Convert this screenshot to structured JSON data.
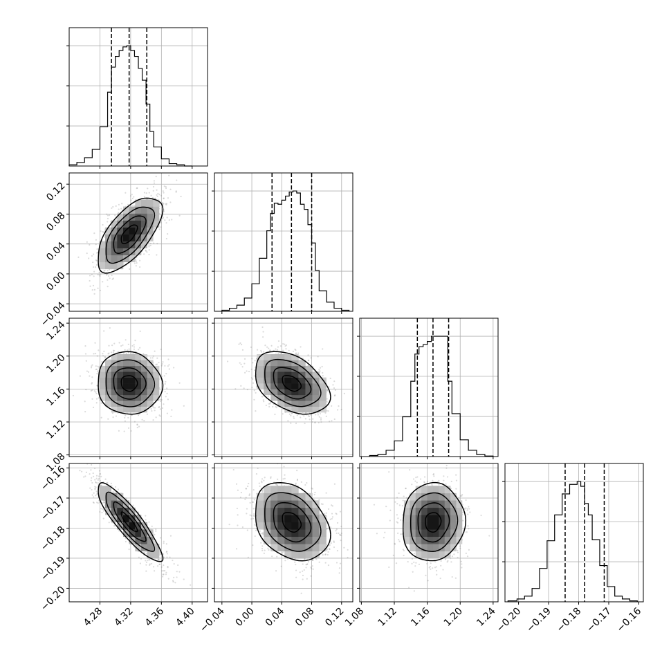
{
  "chart_data": {
    "type": "corner",
    "grid": true,
    "parameters": [
      {
        "lim": [
          4.24,
          4.42
        ],
        "ticks": [
          4.28,
          4.32,
          4.36,
          4.4
        ],
        "tick_labels": [
          "4.28",
          "4.32",
          "4.36",
          "4.40"
        ],
        "quantiles": [
          4.295,
          4.318,
          4.341
        ],
        "hist": {
          "edges": [
            4.24,
            4.25,
            4.26,
            4.27,
            4.28,
            4.29,
            4.295,
            4.3,
            4.305,
            4.31,
            4.315,
            4.32,
            4.325,
            4.33,
            4.335,
            4.34,
            4.345,
            4.35,
            4.36,
            4.37,
            4.38,
            4.39,
            4.4
          ],
          "counts": [
            0.01,
            0.03,
            0.07,
            0.14,
            0.33,
            0.62,
            0.83,
            0.92,
            0.97,
            1.0,
            1.01,
            0.97,
            0.92,
            0.82,
            0.72,
            0.52,
            0.29,
            0.16,
            0.06,
            0.02,
            0.01,
            0.0
          ]
        }
      },
      {
        "lim": [
          -0.05,
          0.135
        ],
        "ticks": [
          -0.04,
          0.0,
          0.04,
          0.08,
          0.12
        ],
        "tick_labels": [
          "−0.04",
          "0.00",
          "0.04",
          "0.08",
          "0.12"
        ],
        "quantiles": [
          0.027,
          0.053,
          0.08
        ],
        "hist": {
          "edges": [
            -0.04,
            -0.03,
            -0.02,
            -0.01,
            0.0,
            0.01,
            0.02,
            0.025,
            0.03,
            0.035,
            0.04,
            0.045,
            0.05,
            0.055,
            0.06,
            0.065,
            0.07,
            0.075,
            0.08,
            0.085,
            0.09,
            0.1,
            0.11,
            0.12,
            0.13
          ],
          "counts": [
            0.01,
            0.03,
            0.06,
            0.13,
            0.27,
            0.52,
            0.79,
            0.96,
            1.06,
            1.05,
            1.09,
            1.13,
            1.17,
            1.18,
            1.16,
            1.05,
            1.0,
            0.85,
            0.67,
            0.4,
            0.2,
            0.09,
            0.03,
            0.01
          ]
        }
      },
      {
        "lim": [
          1.078,
          1.246
        ],
        "ticks": [
          1.08,
          1.12,
          1.16,
          1.2,
          1.24
        ],
        "tick_labels": [
          "1.08",
          "1.12",
          "1.16",
          "1.20",
          "1.24"
        ],
        "quantiles": [
          1.148,
          1.167,
          1.186
        ],
        "hist": {
          "edges": [
            1.09,
            1.1,
            1.11,
            1.12,
            1.13,
            1.14,
            1.145,
            1.15,
            1.155,
            1.16,
            1.165,
            1.17,
            1.175,
            1.18,
            1.185,
            1.19,
            1.2,
            1.21,
            1.22,
            1.23,
            1.24
          ],
          "counts": [
            0.01,
            0.02,
            0.06,
            0.15,
            0.38,
            0.72,
            0.98,
            1.05,
            1.07,
            1.1,
            1.15,
            1.15,
            1.15,
            1.15,
            0.72,
            0.41,
            0.16,
            0.06,
            0.02,
            0.005
          ]
        }
      },
      {
        "lim": [
          -0.2045,
          -0.1585
        ],
        "ticks": [
          -0.2,
          -0.19,
          -0.18,
          -0.17,
          -0.16
        ],
        "tick_labels": [
          "−0.20",
          "−0.19",
          "−0.18",
          "−0.17",
          "−0.16"
        ],
        "quantiles": [
          -0.1845,
          -0.178,
          -0.1715
        ],
        "hist": {
          "edges": [
            -0.2035,
            -0.2005,
            -0.198,
            -0.1955,
            -0.193,
            -0.1905,
            -0.188,
            -0.1855,
            -0.183,
            -0.1805,
            -0.1793,
            -0.178,
            -0.1768,
            -0.1755,
            -0.173,
            -0.1705,
            -0.168,
            -0.1655,
            -0.163,
            -0.1605
          ],
          "counts": [
            0.01,
            0.03,
            0.06,
            0.14,
            0.35,
            0.64,
            0.91,
            1.13,
            1.23,
            1.26,
            1.21,
            1.03,
            0.91,
            0.65,
            0.38,
            0.16,
            0.06,
            0.03,
            0.01
          ]
        }
      }
    ],
    "pairs": [
      {
        "x": 0,
        "y": 1,
        "mean": [
          4.318,
          0.053
        ],
        "sd": [
          0.021,
          0.025
        ],
        "rho": 0.65
      },
      {
        "x": 0,
        "y": 2,
        "mean": [
          4.318,
          1.167
        ],
        "sd": [
          0.021,
          0.019
        ],
        "rho": -0.05
      },
      {
        "x": 1,
        "y": 2,
        "mean": [
          0.053,
          1.167
        ],
        "sd": [
          0.025,
          0.019
        ],
        "rho": -0.4
      },
      {
        "x": 0,
        "y": 3,
        "mean": [
          4.318,
          -0.178
        ],
        "sd": [
          0.021,
          0.0065
        ],
        "rho": -0.88
      },
      {
        "x": 1,
        "y": 3,
        "mean": [
          0.053,
          -0.178
        ],
        "sd": [
          0.025,
          0.0065
        ],
        "rho": -0.3
      },
      {
        "x": 2,
        "y": 3,
        "mean": [
          1.167,
          -0.178
        ],
        "sd": [
          0.019,
          0.0065
        ],
        "rho": 0.05
      }
    ],
    "contour_levels_sigma": [
      0.5,
      1.0,
      1.5,
      2.0
    ]
  },
  "colors": {
    "scatter": "#7f7f7f",
    "line": "#000000",
    "grid": "#b0b0b0",
    "density_fill": "#000000"
  }
}
